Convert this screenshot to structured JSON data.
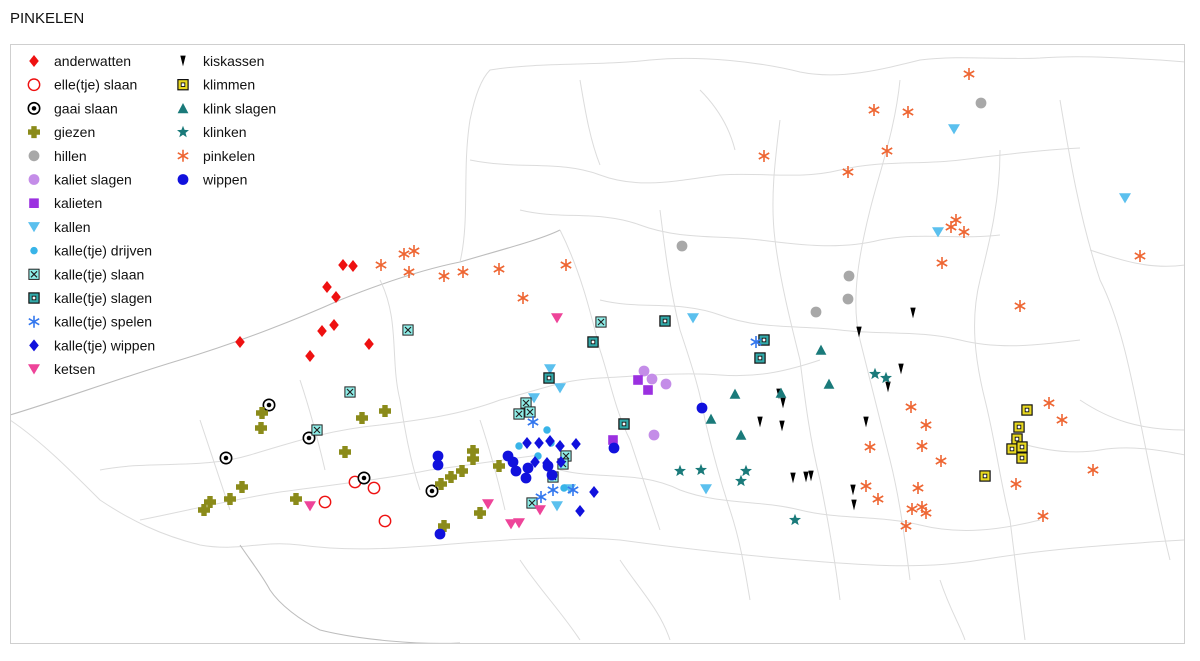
{
  "title": "PINKELEN",
  "legend": [
    {
      "key": "anderwatten",
      "label": "anderwatten",
      "symbol": "diamond",
      "color": "#ee1111"
    },
    {
      "key": "elle_slaan",
      "label": "elle(tje) slaan",
      "symbol": "ring",
      "color": "#ee1111"
    },
    {
      "key": "gaai_slaan",
      "label": "gaai slaan",
      "symbol": "bullseye",
      "color": "#000000"
    },
    {
      "key": "giezen",
      "label": "giezen",
      "symbol": "plus",
      "color": "#8b8b1a"
    },
    {
      "key": "hillen",
      "label": "hillen",
      "symbol": "circle",
      "color": "#a8a8a8"
    },
    {
      "key": "kaliet_slagen",
      "label": "kaliet slagen",
      "symbol": "circle",
      "color": "#c48de8"
    },
    {
      "key": "kalieten",
      "label": "kalieten",
      "symbol": "square",
      "color": "#9b30e0"
    },
    {
      "key": "kallen",
      "label": "kallen",
      "symbol": "tri-down",
      "color": "#5bc0ee"
    },
    {
      "key": "kalle_drijven",
      "label": "kalle(tje) drijven",
      "symbol": "small-circle",
      "color": "#38b4e8"
    },
    {
      "key": "kalle_slaan",
      "label": "kalle(tje) slaan",
      "symbol": "x-box",
      "color": "#8feee8"
    },
    {
      "key": "kalle_slagen",
      "label": "kalle(tje) slagen",
      "symbol": "box-dot",
      "color": "#33aaaa"
    },
    {
      "key": "kalle_spelen",
      "label": "kalle(tje) spelen",
      "symbol": "asterisk",
      "color": "#3377ee"
    },
    {
      "key": "kalle_wippen",
      "label": "kalle(tje) wippen",
      "symbol": "diamond",
      "color": "#1111dd"
    },
    {
      "key": "ketsen",
      "label": "ketsen",
      "symbol": "tri-down",
      "color": "#ee4499"
    },
    {
      "key": "kiskassen",
      "label": "kiskassen",
      "symbol": "wedge",
      "color": "#000000"
    },
    {
      "key": "klimmen",
      "label": "klimmen",
      "symbol": "box-dot",
      "color": "#e8d820"
    },
    {
      "key": "klink_slagen",
      "label": "klink slagen",
      "symbol": "tri-up",
      "color": "#1a7a7a"
    },
    {
      "key": "klinken",
      "label": "klinken",
      "symbol": "star",
      "color": "#1a7a7a"
    },
    {
      "key": "pinkelen",
      "label": "pinkelen",
      "symbol": "asterisk",
      "color": "#ee6633"
    },
    {
      "key": "wippen",
      "label": "wippen",
      "symbol": "circle",
      "color": "#1111dd"
    }
  ]
}
